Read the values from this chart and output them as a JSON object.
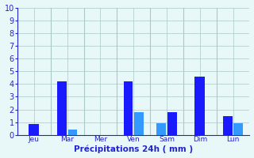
{
  "bars": [
    {
      "day": "Jeu",
      "values": [
        0.85
      ],
      "colors": [
        "#1a1aff"
      ]
    },
    {
      "day": "Mar",
      "values": [
        4.2,
        0.4
      ],
      "colors": [
        "#1a1aff",
        "#3399ff"
      ]
    },
    {
      "day": "Mer",
      "values": [],
      "colors": []
    },
    {
      "day": "Ven",
      "values": [
        4.2,
        1.8
      ],
      "colors": [
        "#1a1aff",
        "#3399ff"
      ]
    },
    {
      "day": "Sam",
      "values": [
        0.9,
        1.8
      ],
      "colors": [
        "#3399ff",
        "#1a1aff"
      ]
    },
    {
      "day": "Dim",
      "values": [
        4.6
      ],
      "colors": [
        "#1a1aff"
      ]
    },
    {
      "day": "Lun",
      "values": [
        1.5,
        0.9
      ],
      "colors": [
        "#1a1aff",
        "#3399ff"
      ]
    }
  ],
  "day_labels": [
    "Jeu",
    "Mar",
    "Mer",
    "Ven",
    "Sam",
    "Dim",
    "Lun"
  ],
  "bar_color_dark": "#1a1aff",
  "bar_color_light": "#3399ff",
  "background_color": "#e8f8f8",
  "grid_color": "#aac8c8",
  "axis_color": "#2222cc",
  "tick_color": "#2222cc",
  "xlabel": "Précipitations 24h ( mm )",
  "ylim": [
    0,
    10
  ],
  "yticks": [
    0,
    1,
    2,
    3,
    4,
    5,
    6,
    7,
    8,
    9,
    10
  ],
  "figsize": [
    3.2,
    2.0
  ],
  "dpi": 100
}
